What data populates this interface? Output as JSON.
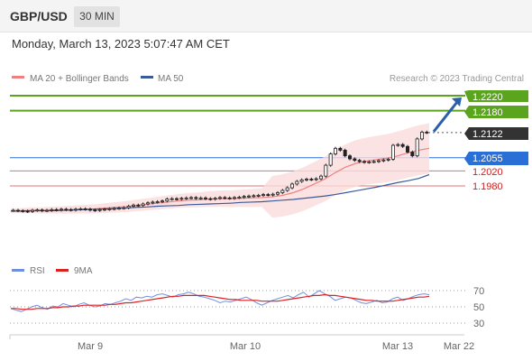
{
  "header": {
    "symbol": "GBP/USD",
    "timeframe": "30 MIN"
  },
  "datetime": "Monday, March 13, 2023 5:07:47 AM CET",
  "legend": [
    {
      "label": "MA 20 + Bollinger Bands",
      "color": "#f08080"
    },
    {
      "label": "MA 50",
      "color": "#3a5a9a"
    }
  ],
  "credit": "Research © 2023 Trading Central",
  "rsi_legend": [
    {
      "label": "RSI",
      "color": "#6f8fe0"
    },
    {
      "label": "9MA",
      "color": "#dd2222"
    }
  ],
  "colors": {
    "green_level": "#5aa41e",
    "blue_level": "#2a6fd6",
    "red_level": "#e07070",
    "current": "#333333",
    "arrow": "#2a5faa",
    "up": "#ffffff",
    "down": "#222222"
  },
  "chart_data": [
    {
      "type": "candlestick",
      "title": "",
      "x_tick_labels": [
        "Mar 9",
        "Mar 10",
        "Mar 13",
        "Mar 22"
      ],
      "levels": [
        {
          "value": "1.2220",
          "style": "resistance"
        },
        {
          "value": "1.2180",
          "style": "resistance"
        },
        {
          "value": "1.2122",
          "style": "current"
        },
        {
          "value": "1.2055",
          "style": "pivot"
        },
        {
          "value": "1.2020",
          "style": "support"
        },
        {
          "value": "1.1980",
          "style": "support"
        }
      ],
      "ylim": [
        1.19,
        1.224
      ],
      "close_series": [
        1.1915,
        1.1914,
        1.1913,
        1.1912,
        1.1915,
        1.1916,
        1.1914,
        1.1915,
        1.1917,
        1.1916,
        1.1918,
        1.1917,
        1.1916,
        1.1918,
        1.1919,
        1.1918,
        1.1916,
        1.1915,
        1.1917,
        1.1918,
        1.1919,
        1.192,
        1.1921,
        1.1922,
        1.1926,
        1.1929,
        1.1928,
        1.1932,
        1.1935,
        1.1937,
        1.1938,
        1.194,
        1.1945,
        1.1946,
        1.1945,
        1.1947,
        1.1948,
        1.1949,
        1.1947,
        1.1948,
        1.1946,
        1.1945,
        1.1947,
        1.1949,
        1.1948,
        1.1947,
        1.1949,
        1.195,
        1.1952,
        1.1953,
        1.1954,
        1.1955,
        1.1957,
        1.1956,
        1.1958,
        1.1962,
        1.1968,
        1.1975,
        1.1985,
        1.1992,
        1.1996,
        1.1998,
        1.1997,
        1.1999,
        1.2006,
        1.2035,
        1.2065,
        1.208,
        1.2075,
        1.206,
        1.2052,
        1.2048,
        1.2045,
        1.2043,
        1.2044,
        1.2045,
        1.2047,
        1.2049,
        1.2051,
        1.2088,
        1.209,
        1.2085,
        1.207,
        1.206,
        1.2105,
        1.2123,
        1.2122
      ],
      "series": [
        {
          "name": "MA 20 + Bollinger Bands",
          "values": [
            1.1914,
            1.1914,
            1.1915,
            1.1915,
            1.1916,
            1.1916,
            1.1917,
            1.1918,
            1.1919,
            1.1921,
            1.1923,
            1.1925,
            1.1928,
            1.1931,
            1.1934,
            1.1937,
            1.194,
            1.1942,
            1.1943,
            1.1945,
            1.1946,
            1.1946,
            1.1947,
            1.1948,
            1.1949,
            1.1951,
            1.1955,
            1.1962,
            1.1972,
            1.1985,
            1.1998,
            1.2015,
            1.203,
            1.204,
            1.2046,
            1.205,
            1.2054,
            1.206,
            1.2068,
            1.2075,
            1.208
          ]
        },
        {
          "name": "MA 50",
          "values": [
            1.1913,
            1.1913,
            1.1914,
            1.1914,
            1.1914,
            1.1915,
            1.1916,
            1.1917,
            1.1918,
            1.1919,
            1.192,
            1.1921,
            1.1923,
            1.1924,
            1.1926,
            1.1927,
            1.1928,
            1.193,
            1.1931,
            1.1932,
            1.1933,
            1.1934,
            1.1936,
            1.1937,
            1.1938,
            1.194,
            1.1942,
            1.1944,
            1.1947,
            1.195,
            1.1953,
            1.1957,
            1.1962,
            1.1967,
            1.1972,
            1.1977,
            1.1983,
            1.1989,
            1.1994,
            1.2,
            1.201
          ]
        }
      ]
    },
    {
      "type": "line",
      "title": "RSI",
      "y_tick_labels": [
        "70",
        "50",
        "30"
      ],
      "ylim": [
        20,
        80
      ],
      "series": [
        {
          "name": "RSI",
          "values": [
            48,
            46,
            44,
            47,
            50,
            52,
            49,
            47,
            51,
            50,
            54,
            52,
            50,
            53,
            55,
            52,
            50,
            51,
            54,
            53,
            55,
            57,
            60,
            58,
            62,
            61,
            63,
            62,
            65,
            66,
            64,
            62,
            65,
            66,
            68,
            66,
            63,
            62,
            60,
            58,
            55,
            57,
            56,
            58,
            60,
            62,
            59,
            55,
            52,
            55,
            58,
            60,
            62,
            64,
            61,
            65,
            68,
            62,
            66,
            70,
            66,
            63,
            58,
            60,
            62,
            61,
            58,
            55,
            54,
            56,
            58,
            55,
            56,
            60,
            62,
            58,
            60,
            63,
            65,
            66,
            65
          ]
        },
        {
          "name": "9MA",
          "values": [
            48,
            48,
            47,
            47,
            47,
            48,
            48,
            48,
            49,
            49,
            50,
            50,
            51,
            51,
            52,
            52,
            52,
            52,
            52,
            53,
            53,
            54,
            55,
            55,
            56,
            57,
            58,
            59,
            60,
            61,
            62,
            63,
            63,
            64,
            64,
            64,
            64,
            64,
            63,
            62,
            61,
            60,
            59,
            59,
            58,
            58,
            58,
            58,
            57,
            57,
            57,
            57,
            58,
            59,
            60,
            61,
            62,
            63,
            64,
            64,
            65,
            64,
            64,
            63,
            62,
            61,
            60,
            59,
            58,
            58,
            57,
            57,
            57,
            57,
            58,
            59,
            60,
            61,
            62,
            62,
            63
          ]
        }
      ]
    }
  ]
}
